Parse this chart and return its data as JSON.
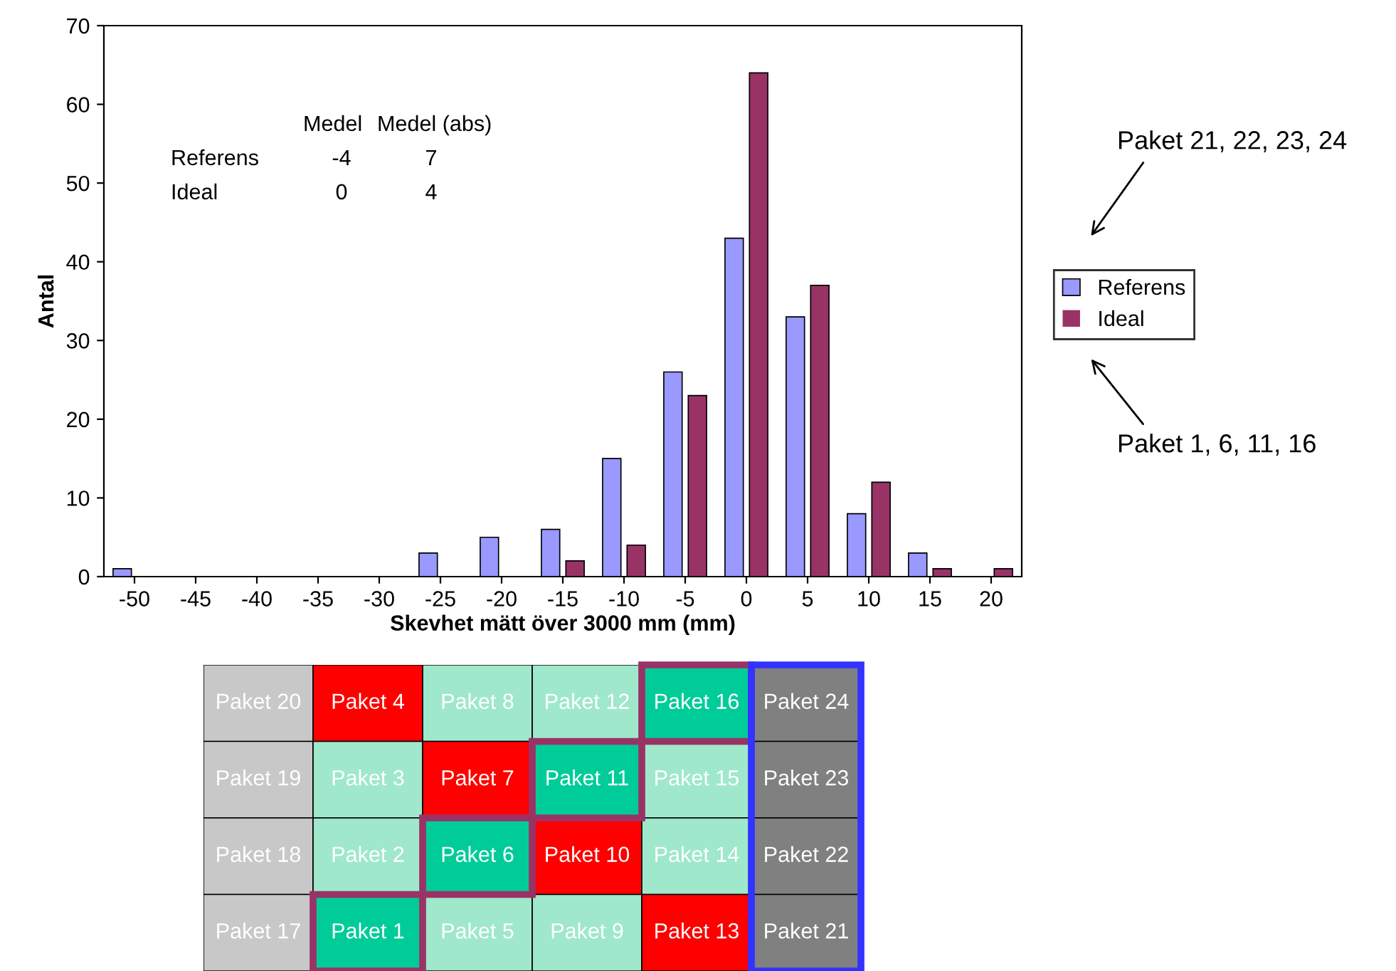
{
  "chart_data": [
    {
      "type": "bar",
      "xlabel": "Skevhet mätt över 3000 mm (mm)",
      "ylabel": "Antal",
      "categories": [
        "-50",
        "-45",
        "-40",
        "-35",
        "-30",
        "-25",
        "-20",
        "-15",
        "-10",
        "-5",
        "0",
        "5",
        "10",
        "15",
        "20"
      ],
      "series": [
        {
          "name": "Referens",
          "color": "#9999ff",
          "values": [
            1,
            0,
            0,
            0,
            0,
            3,
            5,
            6,
            15,
            26,
            43,
            33,
            8,
            3,
            0
          ]
        },
        {
          "name": "Ideal",
          "color": "#993366",
          "values": [
            0,
            0,
            0,
            0,
            0,
            0,
            0,
            2,
            4,
            23,
            64,
            37,
            12,
            1,
            1
          ]
        }
      ],
      "ylim": [
        0,
        70
      ],
      "yticks": [
        0,
        10,
        20,
        30,
        40,
        50,
        60,
        70
      ],
      "grid": false,
      "legend": "right",
      "annotations": [
        "Medel",
        "Medel (abs)",
        "Referens",
        "-4",
        "7",
        "Ideal",
        "0",
        "4",
        "Paket 21, 22, 23, 24",
        "Paket 1, 6, 11, 16"
      ]
    },
    {
      "type": "other",
      "annotations": [
        "Paket 20",
        "Paket 4",
        "Paket 8",
        "Paket 12",
        "Paket 16",
        "Paket 24",
        "Paket 19",
        "Paket 3",
        "Paket 7",
        "Paket 11",
        "Paket 15",
        "Paket 23",
        "Paket 18",
        "Paket 2",
        "Paket 6",
        "Paket 10",
        "Paket 14",
        "Paket 22",
        "Paket 17",
        "Paket 1",
        "Paket 5",
        "Paket 9",
        "Paket 13",
        "Paket 21"
      ],
      "colors": [
        "#c8c8c8",
        "#ff0000",
        "#9fe8cc",
        "#9fe8cc",
        "#00cc99",
        "#808080",
        "#c8c8c8",
        "#9fe8cc",
        "#ff0000",
        "#00cc99",
        "#9fe8cc",
        "#808080",
        "#c8c8c8",
        "#9fe8cc",
        "#00cc99",
        "#ff0000",
        "#9fe8cc",
        "#808080",
        "#c8c8c8",
        "#00cc99",
        "#9fe8cc",
        "#9fe8cc",
        "#ff0000",
        "#808080"
      ]
    }
  ]
}
